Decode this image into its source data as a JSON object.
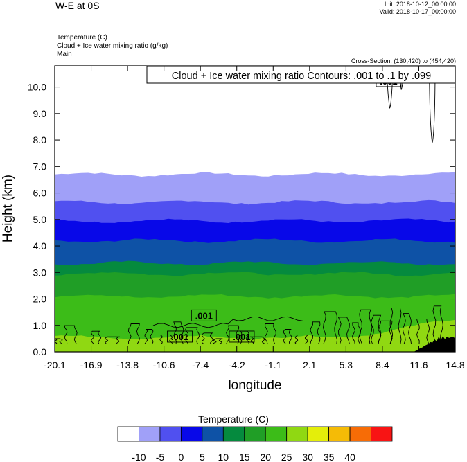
{
  "header": {
    "title": "W-E at 0S",
    "init": "Init: 2018-10-12_00:00:00",
    "valid": "Valid: 2018-10-17_00:00:00",
    "fields": [
      "Temperature   (C)",
      "Cloud + Ice water mixing ratio   (g/kg)",
      "Main"
    ],
    "cross_section": "Cross-Section: (130,420) to (454,420)"
  },
  "chart_data": {
    "type": "heatmap",
    "title": "W-E at 0S",
    "xlabel": "longitude",
    "ylabel": "Height (km)",
    "xlim": [
      -20.1,
      14.8
    ],
    "ylim": [
      0.0,
      10.8
    ],
    "x_ticks": [
      "-20.1",
      "-16.9",
      "-13.8",
      "-10.6",
      "-7.4",
      "-4.2",
      "-1.1",
      "2.1",
      "5.3",
      "8.4",
      "11.6",
      "14.8"
    ],
    "y_ticks": [
      "0.0",
      "1.0",
      "2.0",
      "3.0",
      "4.0",
      "5.0",
      "6.0",
      "7.0",
      "8.0",
      "9.0",
      "10.0"
    ],
    "colorbar": {
      "title": "Temperature  (C)",
      "levels": [
        "-10",
        "-5",
        "0",
        "5",
        "10",
        "15",
        "20",
        "25",
        "30",
        "35",
        "40"
      ],
      "colors": [
        "#ffffff",
        "#a0a0f8",
        "#5050f0",
        "#0808e8",
        "#0e52a6",
        "#058a3e",
        "#209e26",
        "#3cbc18",
        "#90d812",
        "#e4ee0a",
        "#f5bb06",
        "#f76c06",
        "#f81414"
      ]
    },
    "temperature_bands": [
      {
        "level_min": 25,
        "level_max": 30,
        "color": "#90d812",
        "top_km": 0.55,
        "top_km_east": 1.2
      },
      {
        "level_min": 20,
        "level_max": 25,
        "color": "#3cbc18",
        "top_km": 2.1
      },
      {
        "level_min": 15,
        "level_max": 20,
        "color": "#209e26",
        "top_km": 2.95
      },
      {
        "level_min": 10,
        "level_max": 15,
        "color": "#058a3e",
        "top_km": 3.35
      },
      {
        "level_min": 5,
        "level_max": 10,
        "color": "#0e52a6",
        "top_km": 4.2
      },
      {
        "level_min": 0,
        "level_max": 5,
        "color": "#0808e8",
        "top_km": 4.95
      },
      {
        "level_min": -5,
        "level_max": 0,
        "color": "#5050f0",
        "top_km": 5.65
      },
      {
        "level_min": -10,
        "level_max": -5,
        "color": "#a0a0f8",
        "top_km": 6.7
      }
    ],
    "cloud_contours": {
      "label": "Cloud + Ice water mixing ratio Contours: .001 to .1 by .099",
      "levels": [
        0.001,
        0.1
      ],
      "contour_labels": [
        ".001",
        ".001",
        ".001",
        ".001"
      ]
    },
    "terrain": {
      "color": "#000000",
      "x_start": 11.2,
      "max_height_km": 0.6
    }
  }
}
